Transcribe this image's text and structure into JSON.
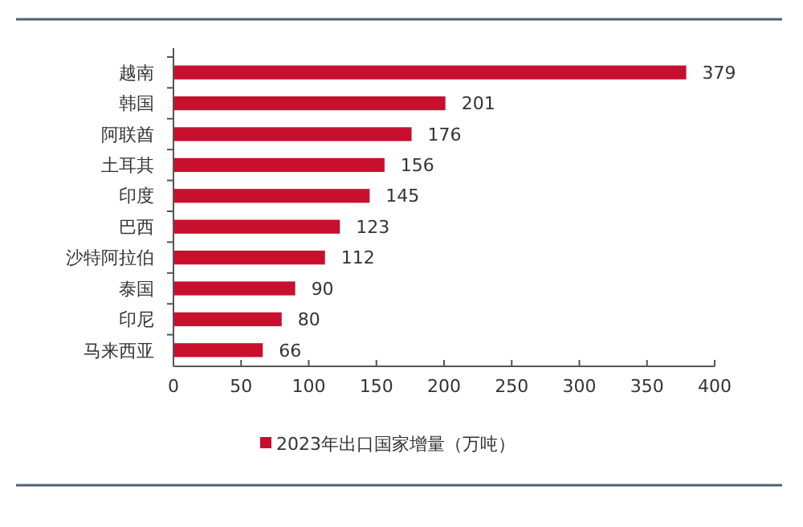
{
  "chart_data": {
    "type": "bar",
    "orientation": "horizontal",
    "categories": [
      "越南",
      "韩国",
      "阿联酋",
      "土耳其",
      "印度",
      "巴西",
      "沙特阿拉伯",
      "泰国",
      "印尼",
      "马来西亚"
    ],
    "series": [
      {
        "name": "2023年出口国家增量（万吨）",
        "color": "#c8102e",
        "values": [
          379,
          201,
          176,
          156,
          145,
          123,
          112,
          90,
          80,
          66
        ]
      }
    ],
    "xlim": [
      0,
      400
    ],
    "xticks": [
      0,
      50,
      100,
      150,
      200,
      250,
      300,
      350,
      400
    ],
    "data_labels": true,
    "grid": false,
    "legend": "bottom"
  }
}
